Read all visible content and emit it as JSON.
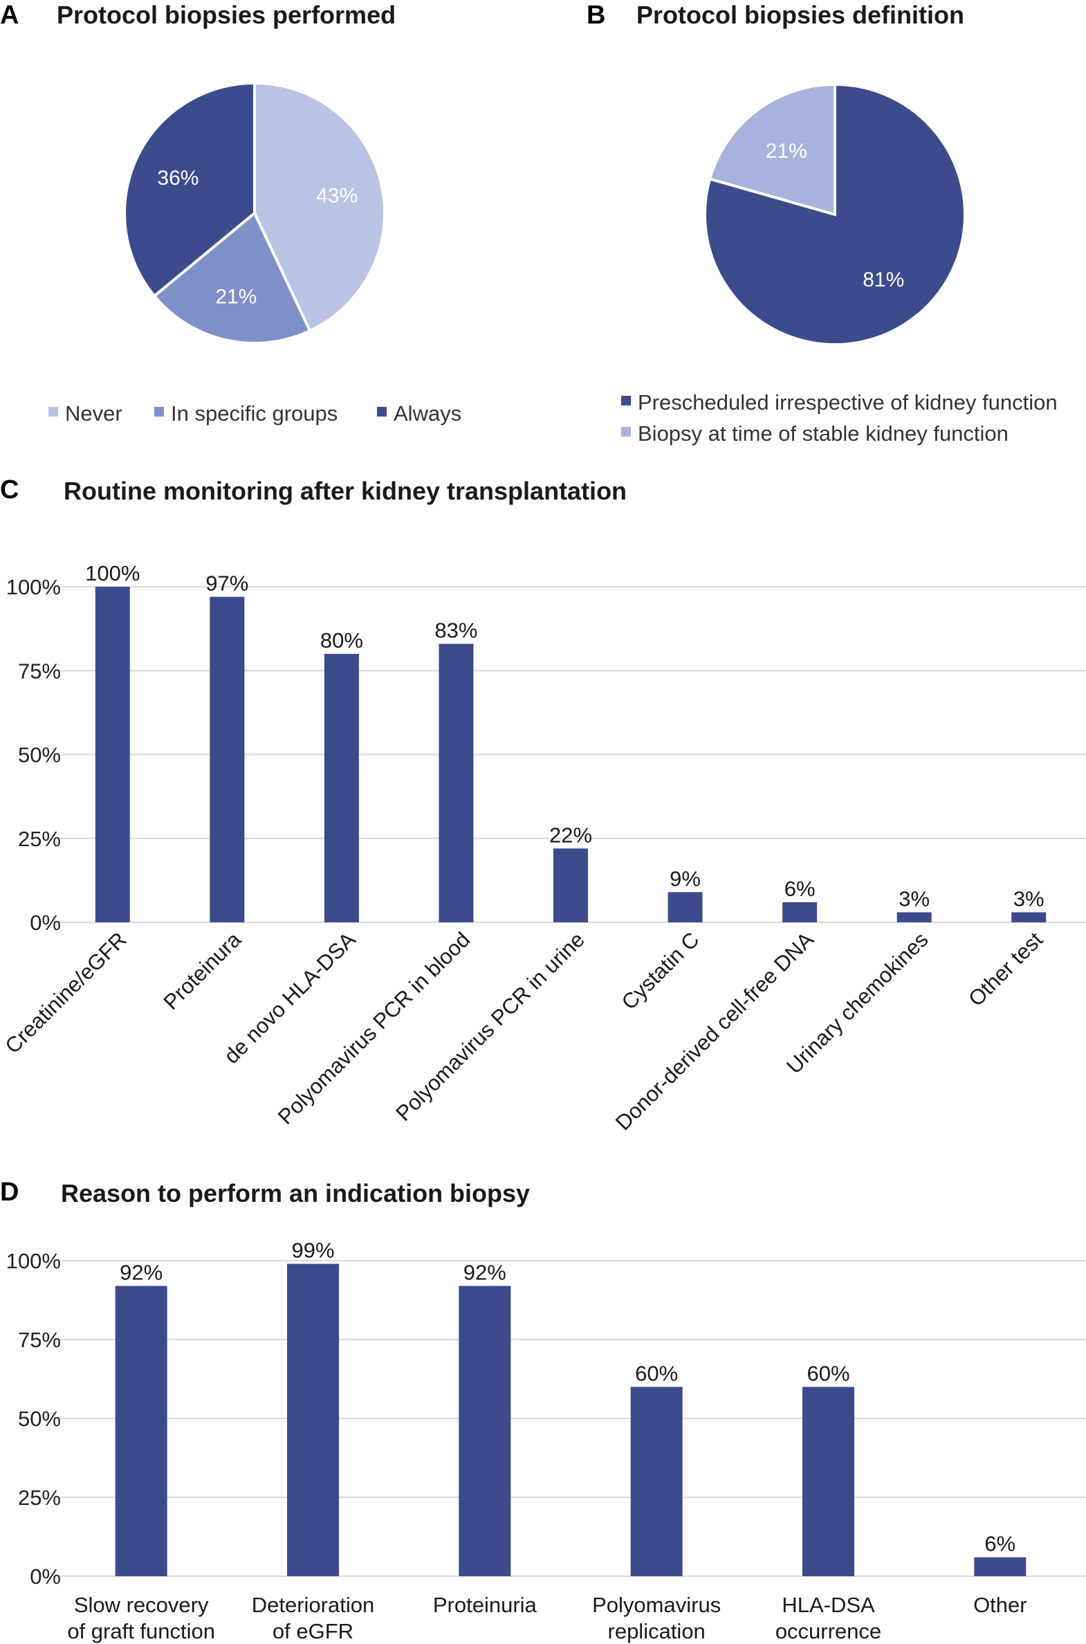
{
  "chart_data": [
    {
      "type": "pie",
      "panel": "A",
      "title": "Protocol biopsies performed",
      "slices": [
        {
          "label": "Never",
          "value": 43,
          "value_label": "43%",
          "color": "#b9c3e4"
        },
        {
          "label": "In specific groups",
          "value": 21,
          "value_label": "21%",
          "color": "#7e90c8"
        },
        {
          "label": "Always",
          "value": 36,
          "value_label": "36%",
          "color": "#3c4b8c"
        }
      ],
      "legend_position": "bottom"
    },
    {
      "type": "pie",
      "panel": "B",
      "title": "Protocol biopsies definition",
      "slices": [
        {
          "label": "Prescheduled irrespective of kidney function",
          "value": 81,
          "value_label": "81%",
          "color": "#3c4b8c"
        },
        {
          "label": "Biopsy at time of stable kidney function",
          "value": 21,
          "value_label": "21%",
          "color": "#a7b3dd"
        }
      ],
      "legend_position": "bottom"
    },
    {
      "type": "bar",
      "panel": "C",
      "title": "Routine monitoring after kidney transplantation",
      "categories": [
        "Creatinine/eGFR",
        "Proteinura",
        "de novo HLA-DSA",
        "Polyomavirus PCR in blood",
        "Polyomavirus PCR in urine",
        "Cystatin C",
        "Donor-derived cell-free DNA",
        "Urinary chemokines",
        "Other test"
      ],
      "values": [
        100,
        97,
        80,
        83,
        22,
        9,
        6,
        3,
        3
      ],
      "value_labels": [
        "100%",
        "97%",
        "80%",
        "83%",
        "22%",
        "9%",
        "6%",
        "3%",
        "3%"
      ],
      "yticks": [
        "0%",
        "25%",
        "50%",
        "75%",
        "100%"
      ],
      "ylim": [
        0,
        100
      ],
      "bar_color": "#3c4b8c",
      "grid": true
    },
    {
      "type": "bar",
      "panel": "D",
      "title": "Reason to perform an indication biopsy",
      "categories": [
        [
          "Slow recovery",
          "of graft function"
        ],
        [
          "Deterioration",
          "of eGFR"
        ],
        [
          "Proteinuria"
        ],
        [
          "Polyomavirus",
          "replication"
        ],
        [
          "HLA-DSA",
          "occurrence"
        ],
        [
          "Other"
        ]
      ],
      "values": [
        92,
        99,
        92,
        60,
        60,
        6
      ],
      "value_labels": [
        "92%",
        "99%",
        "92%",
        "60%",
        "60%",
        "6%"
      ],
      "yticks": [
        "0%",
        "25%",
        "50%",
        "75%",
        "100%"
      ],
      "ylim": [
        0,
        100
      ],
      "bar_color": "#3c4b8c",
      "grid": true
    }
  ]
}
